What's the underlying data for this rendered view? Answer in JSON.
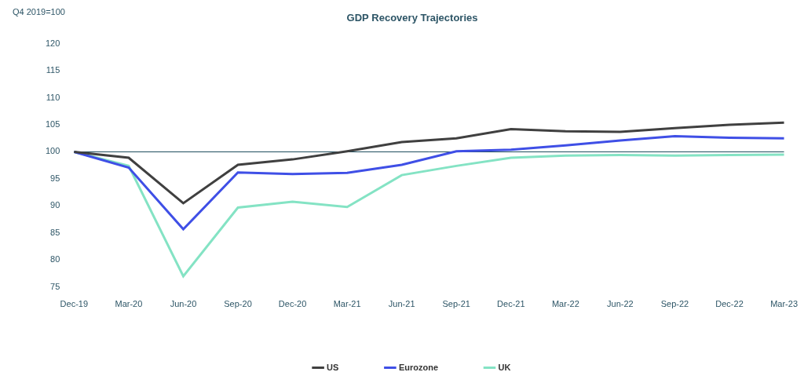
{
  "chart_data": {
    "type": "line",
    "title": "GDP Recovery Trajectories",
    "y_label": "Q4 2019=100",
    "categories": [
      "Dec-19",
      "Mar-20",
      "Jun-20",
      "Sep-20",
      "Dec-20",
      "Mar-21",
      "Jun-21",
      "Sep-21",
      "Dec-21",
      "Mar-22",
      "Jun-22",
      "Sep-22",
      "Dec-22",
      "Mar-23"
    ],
    "series": [
      {
        "name": "US",
        "color": "#404040",
        "values": [
          100,
          98.9,
          90.5,
          97.6,
          98.6,
          100.1,
          101.8,
          102.5,
          104.2,
          103.8,
          103.7,
          104.4,
          105.0,
          105.4
        ]
      },
      {
        "name": "Eurozone",
        "color": "#3f4fe6",
        "values": [
          100,
          97.1,
          85.7,
          96.2,
          95.9,
          96.1,
          97.6,
          100.1,
          100.4,
          101.2,
          102.1,
          102.9,
          102.6,
          102.5
        ]
      },
      {
        "name": "UK",
        "color": "#84e3c4",
        "values": [
          100,
          97.4,
          77.0,
          89.7,
          90.8,
          89.8,
          95.7,
          97.4,
          98.9,
          99.3,
          99.4,
          99.3,
          99.4,
          99.5
        ]
      }
    ],
    "reference_line": 100,
    "ylim": [
      75,
      120
    ],
    "yticks": [
      75,
      80,
      85,
      90,
      95,
      100,
      105,
      110,
      115,
      120
    ],
    "grid": false,
    "legend": "bottom"
  }
}
